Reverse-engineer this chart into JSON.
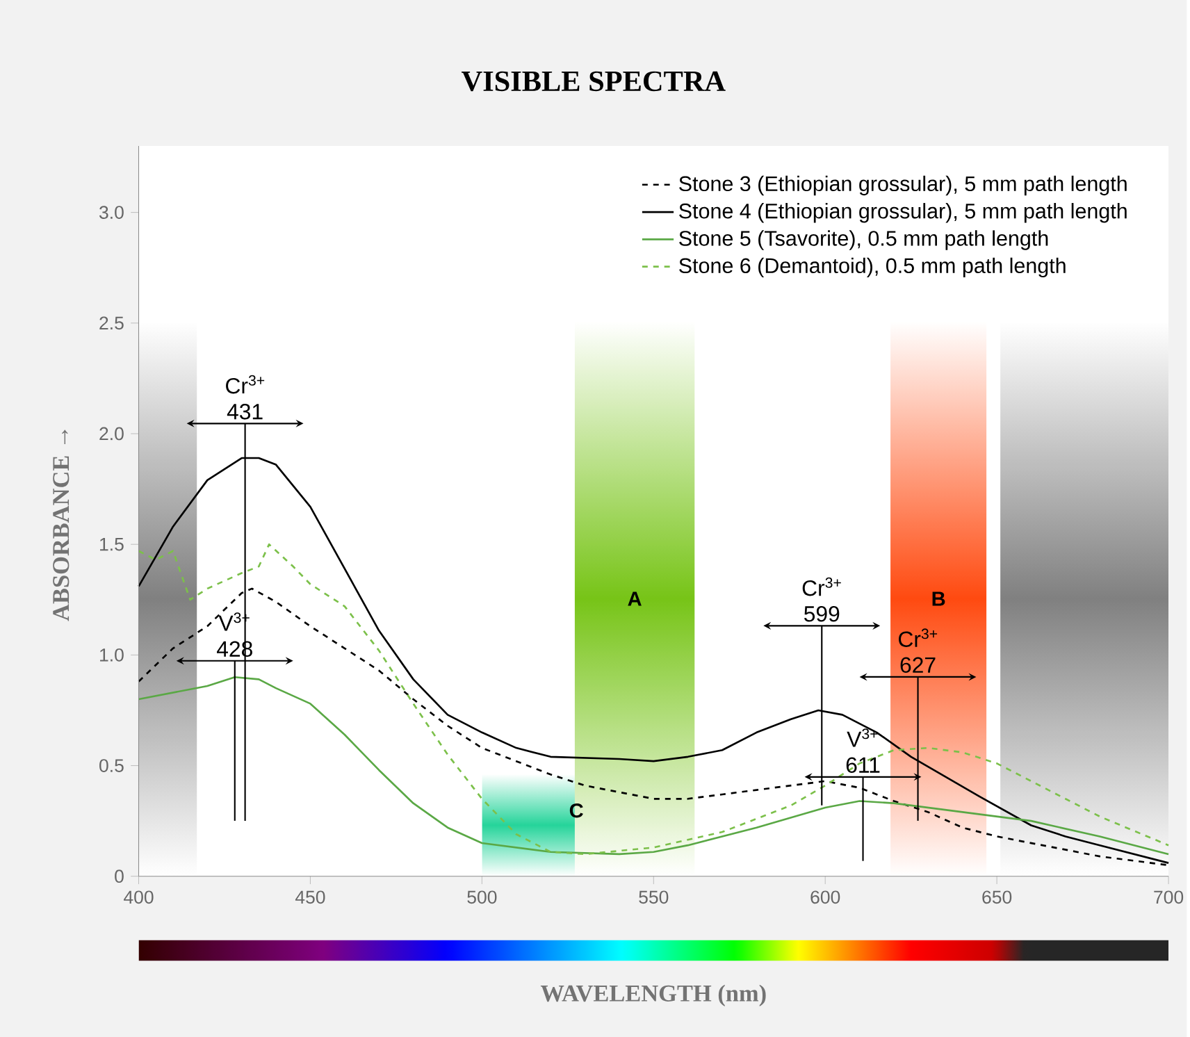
{
  "chart_data": {
    "type": "line",
    "title": "VISIBLE SPECTRA",
    "xlabel": "WAVELENGTH  (nm)",
    "ylabel": "ABSORBANCE →",
    "xlim": [
      400,
      700
    ],
    "xticks": [
      400,
      450,
      500,
      550,
      600,
      650,
      700
    ],
    "ylim": [
      0,
      3.3
    ],
    "yticks": [
      {
        "value": 0,
        "label": "0"
      },
      {
        "value": 0.5,
        "label": "0.5"
      },
      {
        "value": 1,
        "label": "1.0"
      },
      {
        "value": 1.5,
        "label": "1.5"
      },
      {
        "value": 2,
        "label": "2.0"
      },
      {
        "value": 2.5,
        "label": "2.5"
      },
      {
        "value": 3,
        "label": "3.0"
      }
    ],
    "grid": false,
    "legend": "top right",
    "series": [
      {
        "name": "Stone 3 (Ethiopian grossular), 5 mm path length",
        "color": "#000000",
        "line_style": "dashed",
        "x": [
          400,
          410,
          420,
          430,
          433,
          440,
          450,
          460,
          470,
          480,
          490,
          500,
          510,
          520,
          530,
          540,
          550,
          560,
          570,
          580,
          590,
          600,
          610,
          620,
          630,
          640,
          650,
          660,
          680,
          700
        ],
        "values": [
          0.88,
          1.03,
          1.13,
          1.28,
          1.3,
          1.24,
          1.13,
          1.03,
          0.93,
          0.8,
          0.68,
          0.58,
          0.52,
          0.46,
          0.41,
          0.38,
          0.35,
          0.35,
          0.37,
          0.39,
          0.41,
          0.43,
          0.4,
          0.34,
          0.29,
          0.22,
          0.18,
          0.15,
          0.09,
          0.05
        ]
      },
      {
        "name": "Stone 4 (Ethiopian grossular), 5 mm path length",
        "color": "#000000",
        "line_style": "solid",
        "x": [
          400,
          410,
          420,
          430,
          435,
          440,
          450,
          460,
          470,
          480,
          490,
          500,
          510,
          520,
          540,
          550,
          560,
          570,
          580,
          590,
          598,
          605,
          615,
          625,
          635,
          645,
          660,
          670,
          680,
          690,
          700
        ],
        "values": [
          1.31,
          1.58,
          1.79,
          1.89,
          1.89,
          1.86,
          1.67,
          1.39,
          1.11,
          0.89,
          0.73,
          0.65,
          0.58,
          0.54,
          0.53,
          0.52,
          0.54,
          0.57,
          0.65,
          0.71,
          0.75,
          0.73,
          0.65,
          0.54,
          0.45,
          0.36,
          0.23,
          0.18,
          0.14,
          0.1,
          0.06
        ]
      },
      {
        "name": "Stone 5 (Tsavorite), 0.5 mm path length",
        "color": "#5aa845",
        "line_style": "solid",
        "x": [
          400,
          410,
          420,
          428,
          435,
          440,
          450,
          460,
          470,
          480,
          490,
          500,
          520,
          540,
          550,
          560,
          580,
          600,
          610,
          620,
          640,
          660,
          680,
          700
        ],
        "values": [
          0.8,
          0.83,
          0.86,
          0.9,
          0.89,
          0.85,
          0.78,
          0.64,
          0.48,
          0.33,
          0.22,
          0.15,
          0.11,
          0.1,
          0.11,
          0.14,
          0.22,
          0.31,
          0.34,
          0.33,
          0.29,
          0.25,
          0.18,
          0.1
        ]
      },
      {
        "name": "Stone 6 (Demantoid), 0.5 mm path length",
        "color": "#7cc04a",
        "line_style": "dashed",
        "x": [
          400,
          405,
          410,
          415,
          420,
          430,
          435,
          438,
          445,
          450,
          460,
          470,
          480,
          490,
          500,
          510,
          520,
          530,
          550,
          570,
          590,
          600,
          610,
          620,
          630,
          640,
          650,
          660,
          680,
          700
        ],
        "values": [
          1.47,
          1.43,
          1.47,
          1.25,
          1.3,
          1.37,
          1.4,
          1.5,
          1.4,
          1.32,
          1.22,
          1.02,
          0.78,
          0.55,
          0.35,
          0.19,
          0.11,
          0.1,
          0.13,
          0.2,
          0.32,
          0.41,
          0.51,
          0.57,
          0.58,
          0.56,
          0.51,
          0.43,
          0.27,
          0.14
        ]
      }
    ],
    "bands": [
      {
        "axis": "x",
        "from": 400,
        "to": 417,
        "label": null,
        "color": "#808080"
      },
      {
        "axis": "x",
        "from": 651,
        "to": 700,
        "label": null,
        "color": "#808080"
      },
      {
        "axis": "x",
        "from": 500,
        "to": 555,
        "label": "C",
        "color": "#25d49a"
      },
      {
        "axis": "x",
        "from": 527,
        "to": 562,
        "label": "A",
        "color": "#77c417"
      },
      {
        "axis": "x",
        "from": 619,
        "to": 647,
        "label": "B",
        "color": "#ff4a10"
      }
    ],
    "ref_lines": [
      {
        "axis": "x",
        "value": 431,
        "label": "Cr$^{3+}$ 431"
      },
      {
        "axis": "x",
        "value": 428,
        "label": "V$^{3+}$ 428"
      },
      {
        "axis": "x",
        "value": 599,
        "label": "Cr$^{3+}$ 599"
      },
      {
        "axis": "x",
        "value": 611,
        "label": "V$^{3+}$ 611"
      },
      {
        "axis": "x",
        "value": 627,
        "label": "Cr$^{3+}$ 627"
      }
    ]
  }
}
